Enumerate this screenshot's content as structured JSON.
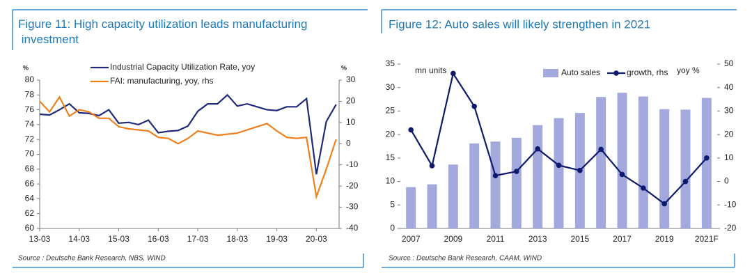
{
  "chart_data": [
    {
      "type": "line",
      "title": "Figure 11: High capacity utilization leads manufacturing investment",
      "ylabel": "%",
      "y2label": "%",
      "categories": [
        "13-03",
        null,
        null,
        null,
        "14-03",
        null,
        null,
        null,
        "15-03",
        null,
        null,
        null,
        "16-03",
        null,
        null,
        null,
        "17-03",
        null,
        null,
        null,
        "18-03",
        null,
        null,
        null,
        "19-03",
        null,
        null,
        null,
        "20-03",
        null,
        null
      ],
      "series": [
        {
          "name": "Industrial Capacity Utilization Rate, yoy",
          "color": "#1f2a7a",
          "axis": "y",
          "values": [
            75.4,
            75.3,
            76.0,
            76.8,
            75.6,
            75.5,
            75.2,
            76.0,
            74.2,
            74.3,
            74.0,
            74.6,
            72.9,
            73.1,
            73.2,
            73.8,
            75.8,
            76.8,
            76.8,
            78.0,
            76.5,
            76.8,
            76.4,
            76.0,
            75.9,
            76.4,
            76.4,
            77.5,
            67.3,
            74.4,
            76.7
          ]
        },
        {
          "name": "FAI: manufacturing, yoy, rhs",
          "color": "#f07f1b",
          "axis": "y2",
          "values": [
            20,
            15,
            22,
            13,
            16,
            15,
            12,
            12,
            8,
            7,
            6.5,
            6,
            3,
            2.5,
            0,
            2.5,
            6,
            5,
            4,
            4.5,
            5,
            6.5,
            8,
            9.5,
            6,
            3,
            2.5,
            3,
            -25,
            -12,
            2
          ]
        }
      ],
      "ylim": [
        60,
        80
      ],
      "yticks": [
        60,
        62,
        64,
        66,
        68,
        70,
        72,
        74,
        76,
        78,
        80
      ],
      "y2lim": [
        -40,
        30
      ],
      "y2ticks": [
        -40,
        -30,
        -20,
        -10,
        0,
        10,
        20,
        30
      ],
      "grid": false,
      "source": "Source : Deutsche Bank Research, NBS, WIND"
    },
    {
      "type": "bar",
      "title": "Figure 12: Auto sales will likely strengthen in 2021",
      "ylabel": "mn units",
      "y2label": "yoy %",
      "categories": [
        "2007",
        null,
        "2009",
        null,
        "2011",
        null,
        "2013",
        null,
        "2015",
        null,
        "2017",
        null,
        "2019",
        null,
        "2021F"
      ],
      "series": [
        {
          "name": "Auto sales",
          "color": "#a3a9dc",
          "axis": "y",
          "type": "bar",
          "values": [
            8.8,
            9.4,
            13.6,
            18.1,
            18.5,
            19.3,
            22.0,
            23.5,
            24.6,
            28.0,
            28.9,
            28.1,
            25.4,
            25.3,
            27.8
          ]
        },
        {
          "name": "growth, rhs",
          "color": "#0d1a6e",
          "axis": "y2",
          "type": "line",
          "values": [
            22,
            6.7,
            46,
            32,
            2.5,
            4.3,
            13.9,
            6.9,
            4.7,
            13.7,
            3,
            -2.8,
            -9.5,
            0,
            10
          ]
        }
      ],
      "ylim": [
        0,
        35
      ],
      "yticks": [
        0,
        5,
        10,
        15,
        20,
        25,
        30,
        35
      ],
      "y2lim": [
        -20,
        50
      ],
      "y2ticks": [
        -20,
        -10,
        0,
        10,
        20,
        30,
        40,
        50
      ],
      "grid": false,
      "source": "Source : Deutsche Bank Research, CAAM, WIND"
    }
  ]
}
